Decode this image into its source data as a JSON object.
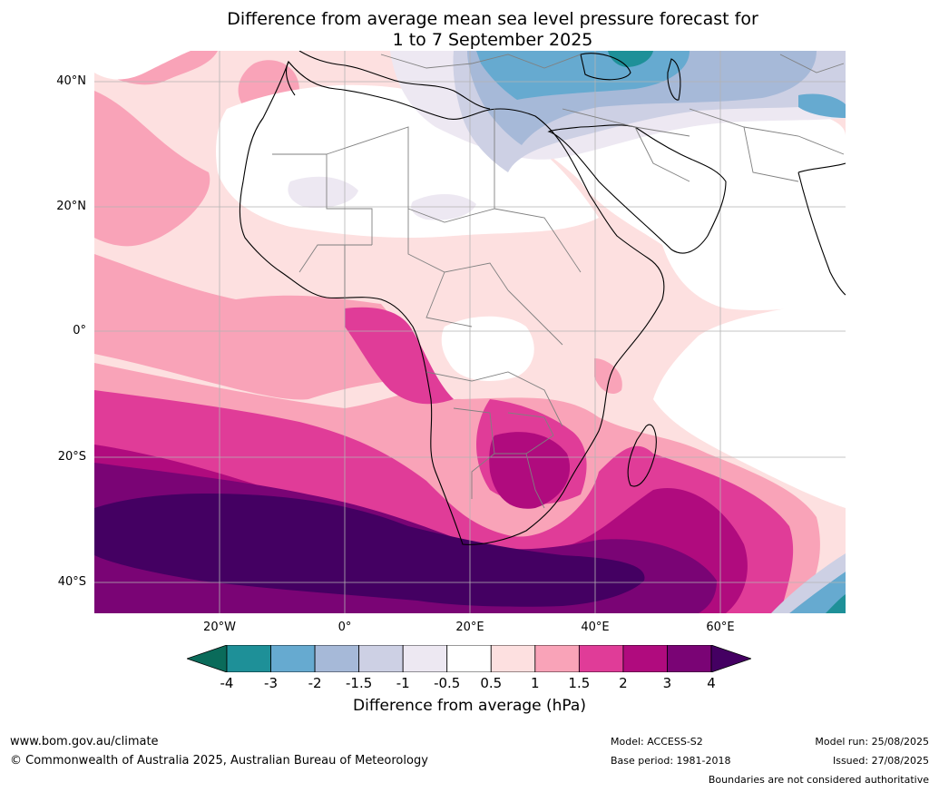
{
  "header": {
    "title_line1": "Difference from average mean sea level pressure forecast for",
    "title_line2": "1 to 7 September 2025"
  },
  "map": {
    "lat_labels": [
      "40°N",
      "20°N",
      "0°",
      "20°S",
      "40°S"
    ],
    "lon_labels": [
      "20°W",
      "0°",
      "20°E",
      "40°E",
      "60°E"
    ]
  },
  "colorbar": {
    "title": "Difference from average (hPa)",
    "ticks": [
      "-4",
      "-3",
      "-2",
      "-1.5",
      "-1",
      "-0.5",
      "0.5",
      "1",
      "1.5",
      "2",
      "3",
      "4"
    ],
    "colors": {
      "below_-4": "#0a6b5a",
      "-4_-3": "#1e9098",
      "-3_-2": "#66aad0",
      "-2_-1.5": "#a6b9d8",
      "-1.5_-1": "#cdd0e4",
      "-1_-0.5": "#ede8f2",
      "-0.5_0.5": "#ffffff",
      "0.5_1": "#fde0e0",
      "1_1.5": "#f9a3b8",
      "1.5_2": "#e03c98",
      "2_3": "#b00b7e",
      "3_4": "#7a0475",
      "above_4": "#440062"
    }
  },
  "footer": {
    "website": "www.bom.gov.au/climate",
    "copyright": "© Commonwealth of Australia 2025, Australian Bureau of Meteorology",
    "model": "Model: ACCESS-S2",
    "base_period": "Base period: 1981-2018",
    "model_run": "Model run: 25/08/2025",
    "issued": "Issued: 27/08/2025",
    "disclaimer": "Boundaries are not considered authoritative"
  }
}
